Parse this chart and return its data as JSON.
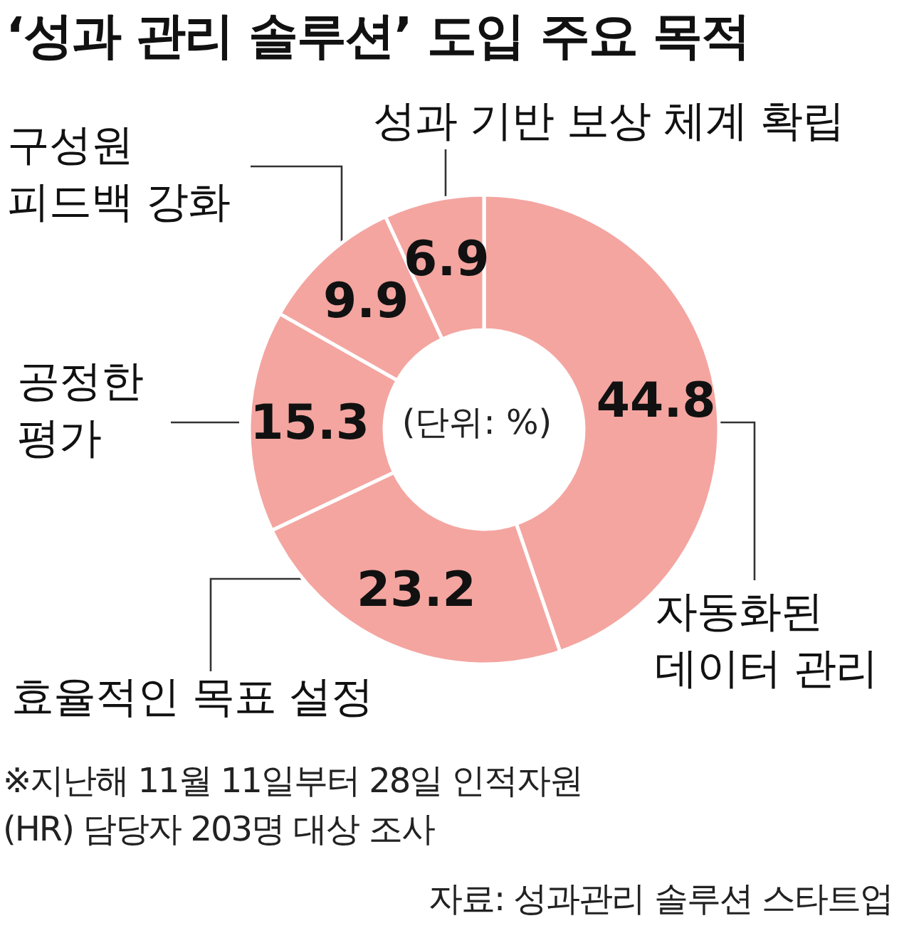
{
  "chart_data": {
    "type": "donut",
    "title": "‘성과 관리 솔루션’ 도입 주요 목적",
    "subtitle": "(단위: %)",
    "categories": [
      "자동화된 데이터 관리",
      "효율적인 목표 설정",
      "공정한 평가",
      "구성원 피드백 강화",
      "성과 기반 보상 체계 확립"
    ],
    "values": [
      44.8,
      23.2,
      15.3,
      9.9,
      6.9
    ],
    "colors": [
      "#f4a5a0",
      "#f4a5a0",
      "#f4a5a0",
      "#f4a5a0",
      "#f4a5a0"
    ],
    "data_labels": true,
    "legend": false,
    "annotations": [
      "※지난해 11월 11일부터 28일 인적자원(HR) 담당자 203명 대상 조사",
      "자료: 성과관리 솔루션 스타트업"
    ]
  }
}
